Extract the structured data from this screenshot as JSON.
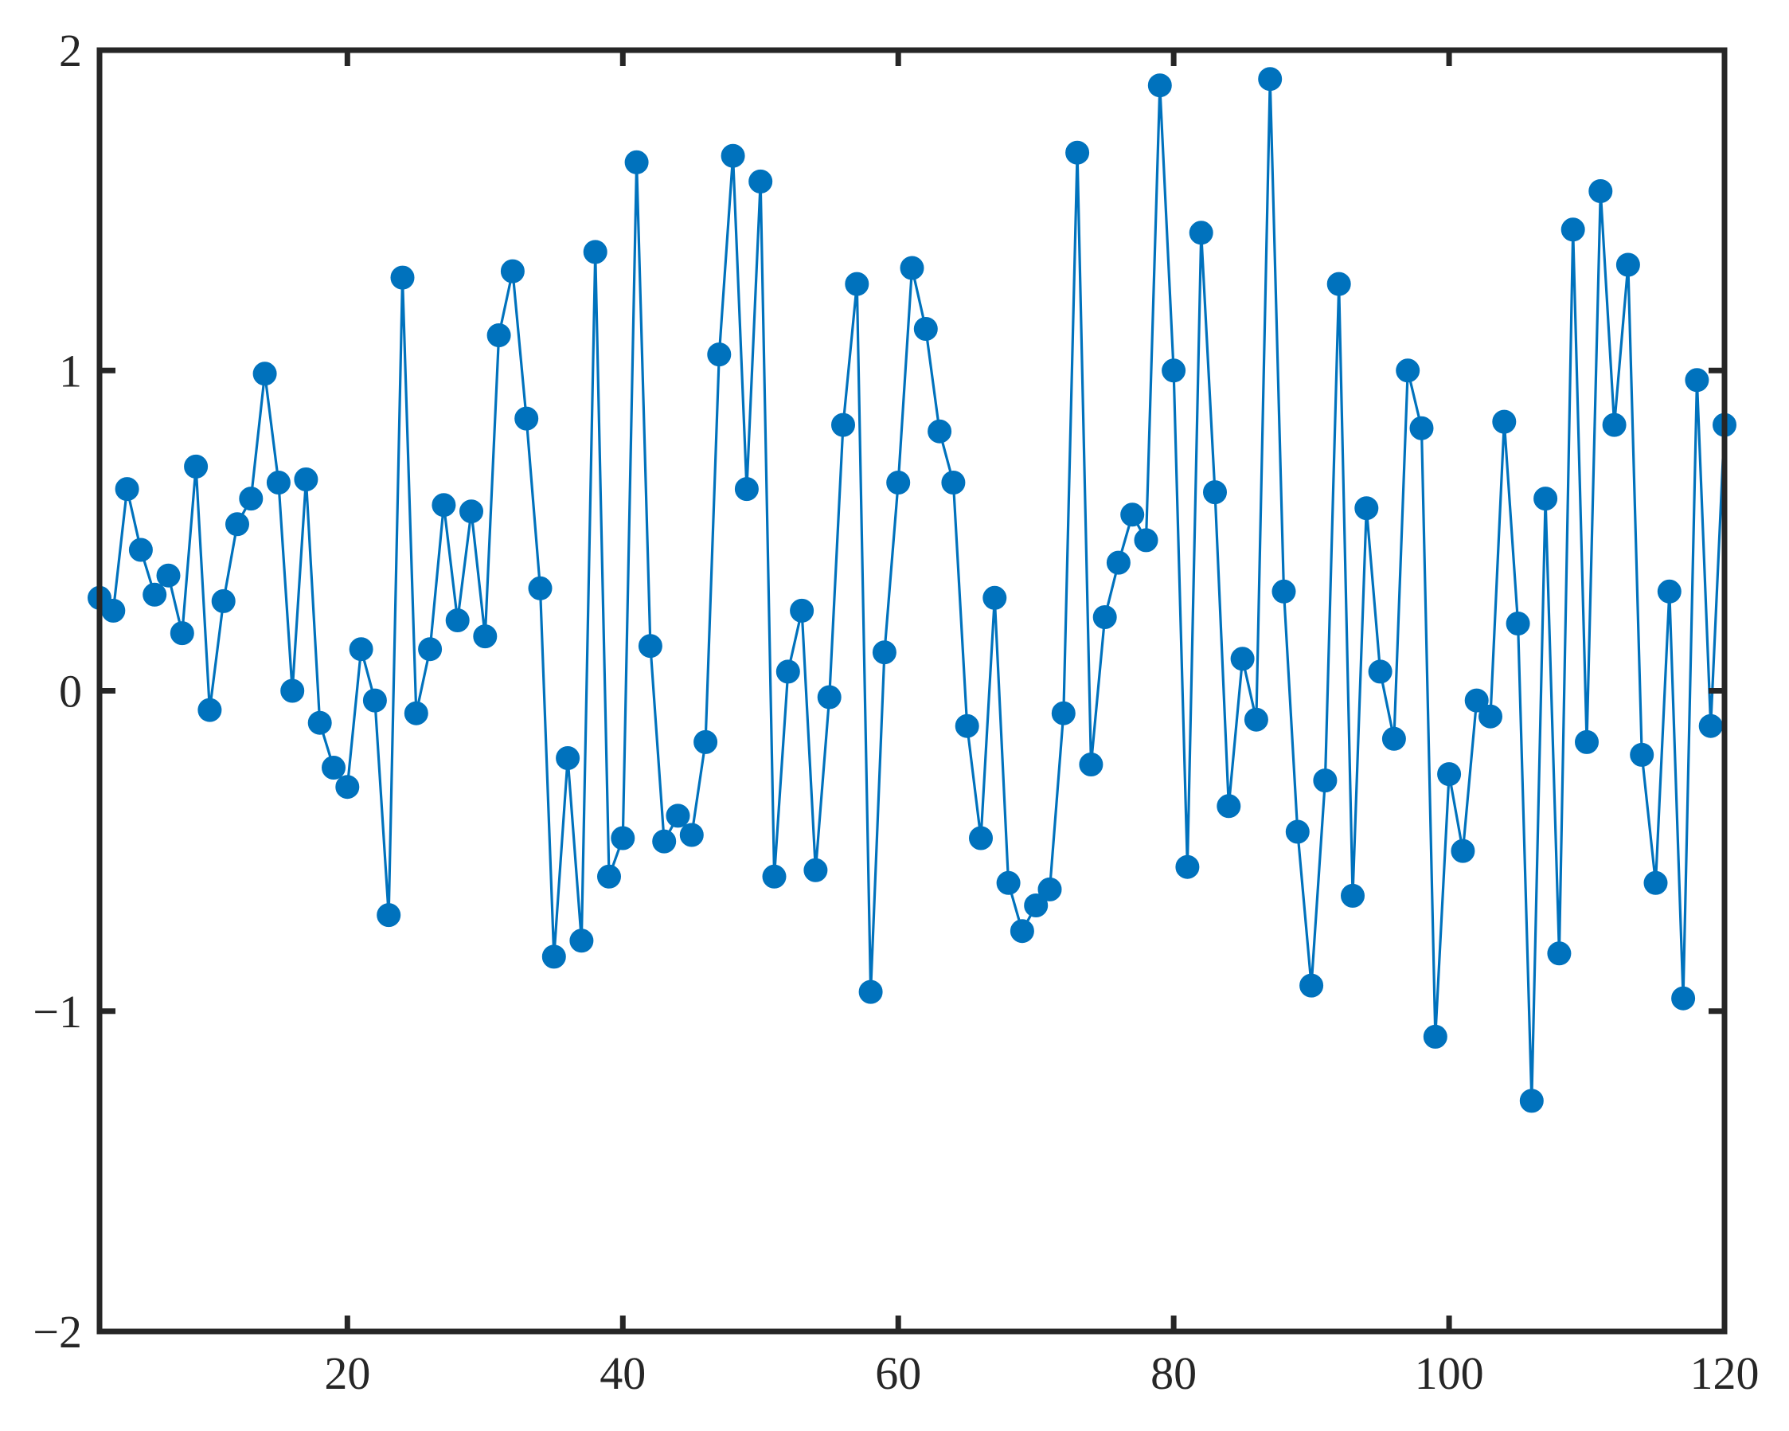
{
  "chart_data": {
    "type": "line",
    "title": "",
    "xlabel": "",
    "ylabel": "",
    "xlim": [
      2,
      120
    ],
    "ylim": [
      -2,
      2
    ],
    "xticks": [
      20,
      40,
      60,
      80,
      100,
      120
    ],
    "yticks": [
      -2,
      -1,
      0,
      1,
      2
    ],
    "xtick_labels": [
      "20",
      "40",
      "60",
      "80",
      "100",
      "120"
    ],
    "ytick_labels": [
      "−2",
      "−1",
      "0",
      "1",
      "2"
    ],
    "grid": false,
    "marker": "filled-circle",
    "colors": {
      "series": "#0072BD",
      "axes": "#262626"
    },
    "series": [
      {
        "x": [
          2,
          3,
          4,
          5,
          6,
          7,
          8,
          9,
          10,
          11,
          12,
          13,
          14,
          15,
          16,
          17,
          18,
          19,
          20,
          21,
          22,
          23,
          24,
          25,
          26,
          27,
          28,
          29,
          30,
          31,
          32,
          33,
          34,
          35,
          36,
          37,
          38,
          39,
          40,
          41,
          42,
          43,
          44,
          45,
          46,
          47,
          48,
          49,
          50,
          51,
          52,
          53,
          54,
          55,
          56,
          57,
          58,
          59,
          60,
          61,
          62,
          63,
          64,
          65,
          66,
          67,
          68,
          69,
          70,
          71,
          72,
          73,
          74,
          75,
          76,
          77,
          78,
          79,
          80,
          81,
          82,
          83,
          84,
          85,
          86,
          87,
          88,
          89,
          90,
          91,
          92,
          93,
          94,
          95,
          96,
          97,
          98,
          99,
          100,
          101,
          102,
          103,
          104,
          105,
          106,
          107,
          108,
          109,
          110,
          111,
          112,
          113,
          114,
          115,
          116,
          117,
          118,
          119,
          120
        ],
        "values": [
          0.29,
          0.25,
          0.63,
          0.44,
          0.3,
          0.36,
          0.18,
          0.7,
          -0.06,
          0.28,
          0.52,
          0.6,
          0.99,
          0.65,
          0.0,
          0.66,
          -0.1,
          -0.24,
          -0.3,
          0.13,
          -0.03,
          -0.7,
          1.29,
          -0.07,
          0.13,
          0.58,
          0.22,
          0.56,
          0.17,
          1.11,
          1.31,
          0.85,
          0.32,
          -0.83,
          -0.21,
          -0.78,
          1.37,
          -0.58,
          -0.46,
          1.65,
          0.14,
          -0.47,
          -0.39,
          -0.45,
          -0.16,
          1.05,
          1.67,
          0.63,
          1.59,
          -0.58,
          0.06,
          0.25,
          -0.56,
          -0.02,
          0.83,
          1.27,
          -0.94,
          0.12,
          0.65,
          1.32,
          1.13,
          0.81,
          0.65,
          -0.11,
          -0.46,
          0.29,
          -0.6,
          -0.75,
          -0.67,
          -0.62,
          -0.07,
          1.68,
          -0.23,
          0.23,
          0.4,
          0.55,
          0.47,
          1.89,
          1.0,
          -0.55,
          1.43,
          0.62,
          -0.36,
          0.1,
          -0.09,
          1.91,
          0.31,
          -0.44,
          -0.92,
          -0.28,
          1.27,
          -0.64,
          0.57,
          0.06,
          -0.15,
          1.0,
          0.82,
          -1.08,
          -0.26,
          -0.5,
          -0.03,
          -0.08,
          0.84,
          0.21,
          -1.28,
          0.6,
          -0.82,
          1.44,
          -0.16,
          1.56,
          0.83,
          1.33,
          -0.2,
          -0.6,
          0.31,
          -0.96,
          0.97,
          -0.11,
          0.83
        ]
      }
    ]
  }
}
